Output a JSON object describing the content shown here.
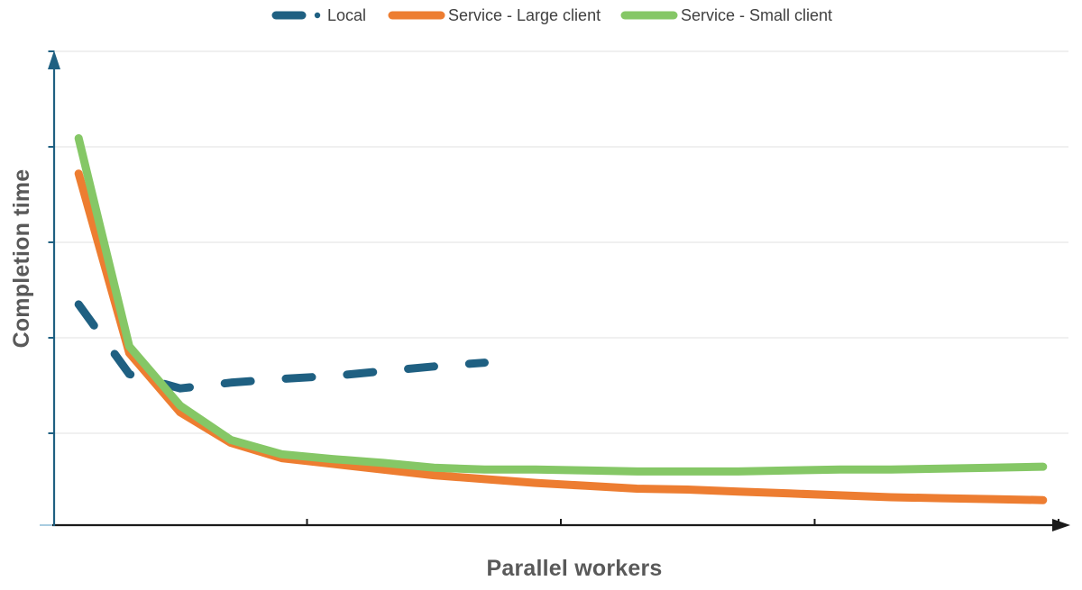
{
  "page": {
    "background": "#FFFFFF"
  },
  "chart_data": {
    "type": "line",
    "title": "",
    "xlabel": "Parallel workers",
    "ylabel": "Completion time",
    "legend_position": "top",
    "grid": "horizontal",
    "x_axis": {
      "range": [
        0,
        20
      ],
      "tick_positions": [
        5,
        10,
        15
      ],
      "tick_labels_visible": false,
      "arrow": true
    },
    "y_axis": {
      "range": [
        0,
        5
      ],
      "gridline_values": [
        1,
        2,
        3,
        4,
        5
      ],
      "tick_labels_visible": false,
      "arrow": true
    },
    "categories": [
      1,
      2,
      3,
      4,
      5,
      6,
      7,
      8,
      9,
      10,
      11,
      12,
      13,
      14,
      15,
      16,
      17,
      18,
      19,
      20
    ],
    "series": [
      {
        "name": "Local",
        "color": "#1F6082",
        "line_style": "dashed",
        "values": [
          2.35,
          1.62,
          1.47,
          1.53,
          1.57,
          1.6,
          1.65,
          1.7,
          1.74
        ]
      },
      {
        "name": "Service - Large client",
        "color": "#ED7D31",
        "line_style": "solid",
        "values": [
          3.72,
          1.84,
          1.22,
          0.9,
          0.74,
          0.68,
          0.62,
          0.56,
          0.52,
          0.48,
          0.45,
          0.42,
          0.41,
          0.39,
          0.37,
          0.35,
          0.33,
          0.32,
          0.31,
          0.3
        ]
      },
      {
        "name": "Service - Small client",
        "color": "#85C766",
        "line_style": "solid",
        "values": [
          4.09,
          1.91,
          1.29,
          0.93,
          0.78,
          0.73,
          0.69,
          0.64,
          0.62,
          0.62,
          0.61,
          0.6,
          0.6,
          0.6,
          0.61,
          0.62,
          0.62,
          0.63,
          0.64,
          0.65
        ]
      }
    ]
  },
  "style": {
    "grid_color": "#E7E7E7",
    "x_axis_color": "#1A1A1A",
    "y_axis_color": "#1F6082",
    "axis_title_color": "#595959",
    "legend_text_color": "#404040"
  }
}
